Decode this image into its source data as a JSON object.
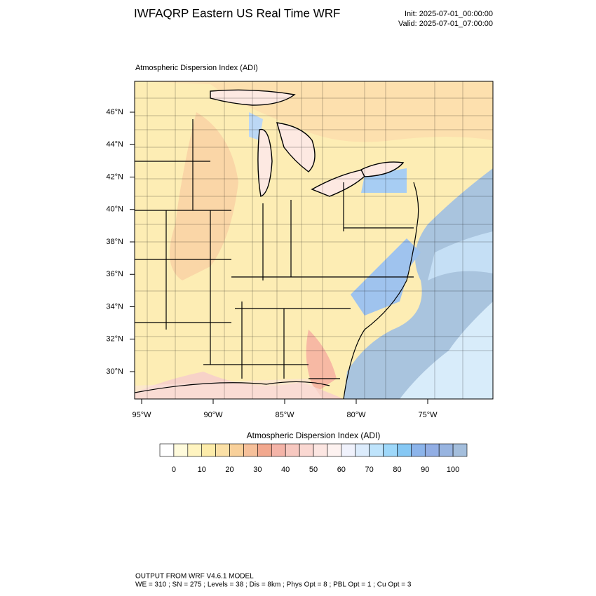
{
  "header": {
    "title": "IWFAQRP Eastern US Real Time WRF",
    "init": "Init: 2025-07-01_00:00:00",
    "valid": "Valid: 2025-07-01_07:00:00"
  },
  "map": {
    "label": "Atmospheric Dispersion Index   (ADI)",
    "lat_labels": [
      "46°N",
      "44°N",
      "42°N",
      "40°N",
      "38°N",
      "36°N",
      "34°N",
      "32°N",
      "30°N"
    ],
    "lon_labels": [
      "95°W",
      "90°W",
      "85°W",
      "80°W",
      "75°W"
    ]
  },
  "colorbar": {
    "title": "Atmospheric Dispersion Index  (ADI)",
    "labels": [
      0,
      10,
      20,
      30,
      40,
      50,
      60,
      70,
      80,
      90,
      100
    ],
    "colors": [
      "#ffffff",
      "#fffbdc",
      "#fff4c0",
      "#fdecaa",
      "#fbe0a6",
      "#f8d09a",
      "#f6c09a",
      "#f2a88e",
      "#f4b4a8",
      "#f7c8c0",
      "#fad8d2",
      "#fce6e2",
      "#fdf2f0",
      "#f0f2fc",
      "#dcecfc",
      "#bfe4fc",
      "#9ed8fa",
      "#86c8f4",
      "#8cb4ea",
      "#92aee4",
      "#98b4e0",
      "#a4bedc"
    ]
  },
  "footer": {
    "line1": "OUTPUT FROM WRF V4.6.1 MODEL",
    "line2": "WE = 310 ; SN = 275 ; Levels = 38 ; Dis = 8km ; Phys Opt = 8 ; PBL Opt = 1 ; Cu Opt = 3"
  }
}
